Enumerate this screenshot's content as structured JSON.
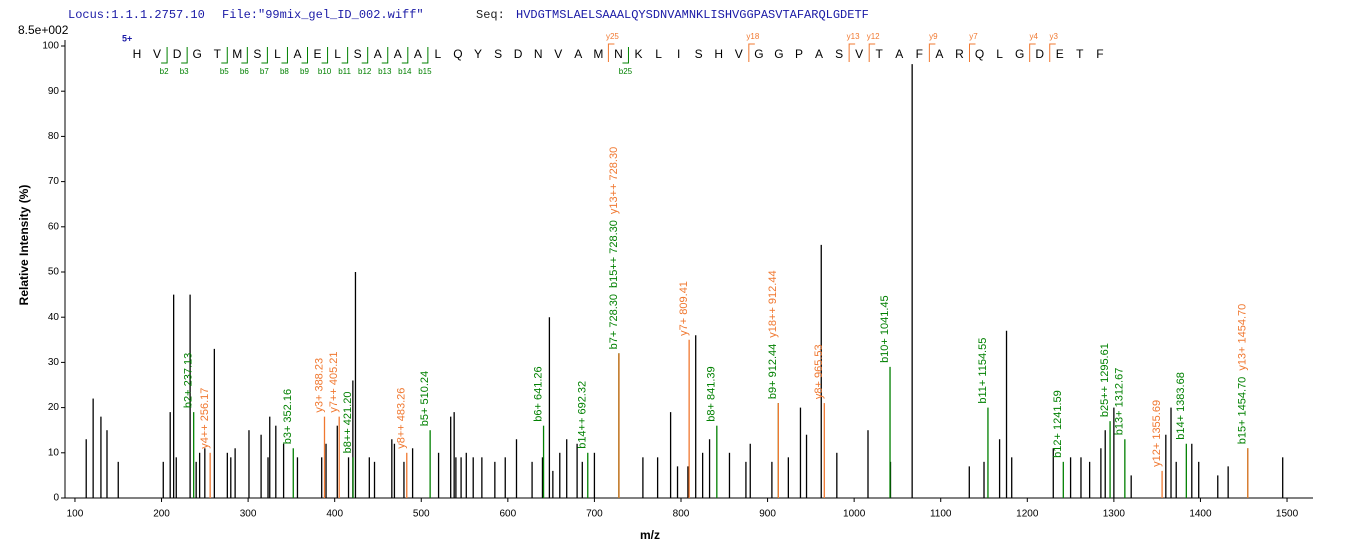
{
  "chart_data": {
    "type": "spectrum",
    "header": {
      "locus": "Locus:1.1.1.2757.10",
      "file": "File:\"99mix_gel_ID_002.wiff\"",
      "seq_label": "Seq:",
      "sequence": "HVDGTMSLAELSAAALQYSDNVAMNKLISHVGGPASVTAFARQLGDETF"
    },
    "scale_label": "8.5e+002",
    "charge": "5+",
    "residues": [
      "H",
      "V",
      "D",
      "G",
      "T",
      "M",
      "S",
      "L",
      "A",
      "E",
      "L",
      "S",
      "A",
      "A",
      "A",
      "L",
      "Q",
      "Y",
      "S",
      "D",
      "N",
      "V",
      "A",
      "M",
      "N",
      "K",
      "L",
      "I",
      "S",
      "H",
      "V",
      "G",
      "G",
      "P",
      "A",
      "S",
      "V",
      "T",
      "A",
      "F",
      "A",
      "R",
      "Q",
      "L",
      "G",
      "D",
      "E",
      "T",
      "F"
    ],
    "b_ions": [
      "b2",
      "b3",
      "b5",
      "b6",
      "b7",
      "b8",
      "b9",
      "b10",
      "b11",
      "b12",
      "b13",
      "b14",
      "b15",
      "b25"
    ],
    "y_ions": [
      "y25",
      "y18",
      "y13",
      "y12",
      "y9",
      "y7",
      "y4",
      "y3"
    ],
    "xlabel": "m/z",
    "ylabel": "Relative   Intensity (%)",
    "xlim": [
      88.5,
      1530
    ],
    "ylim": [
      0,
      100
    ],
    "xticks": [
      100,
      200,
      300,
      400,
      500,
      600,
      700,
      800,
      900,
      1000,
      1100,
      1200,
      1300,
      1400,
      1500
    ],
    "yticks": [
      0,
      10,
      20,
      30,
      40,
      50,
      60,
      70,
      80,
      90,
      100
    ],
    "series": [
      {
        "color": "#000000",
        "x": [
          113,
          121,
          130,
          137,
          150,
          202,
          210,
          214,
          217,
          233,
          240,
          244,
          250,
          261,
          276,
          280,
          285,
          301,
          315,
          323,
          325,
          332,
          341,
          357,
          385,
          390,
          403,
          416,
          421,
          424,
          440,
          446,
          466,
          469,
          480,
          490,
          520,
          534,
          538,
          540,
          546,
          552,
          560,
          570,
          585,
          597,
          610,
          628,
          640,
          648,
          652,
          660,
          668,
          680,
          686,
          700,
          756,
          773,
          788,
          796,
          808,
          817,
          825,
          833,
          856,
          875,
          880,
          905,
          924,
          938,
          945,
          962,
          980,
          1016,
          1042,
          1067,
          1133,
          1150,
          1168,
          1176,
          1182,
          1230,
          1250,
          1262,
          1272,
          1285,
          1290,
          1300,
          1320,
          1360,
          1366,
          1372,
          1390,
          1398,
          1420,
          1432,
          1495
        ],
        "values": [
          13,
          22,
          18,
          15,
          8,
          8,
          19,
          45,
          9,
          45,
          8,
          10,
          11,
          33,
          10,
          9,
          11,
          15,
          14,
          9,
          18,
          16,
          12,
          9,
          9,
          12,
          16,
          9,
          26,
          50,
          9,
          8,
          13,
          12,
          8,
          11,
          10,
          18,
          19,
          9,
          9,
          10,
          9,
          9,
          8,
          9,
          13,
          8,
          9,
          40,
          6,
          10,
          13,
          12,
          8,
          10,
          9,
          9,
          19,
          7,
          7,
          36,
          10,
          13,
          10,
          8,
          12,
          8,
          9,
          20,
          14,
          56,
          10,
          15,
          8,
          96,
          7,
          8,
          13,
          37,
          9,
          11,
          9,
          9,
          8,
          11,
          15,
          20,
          5,
          14,
          20,
          8,
          12,
          8,
          5,
          7,
          9
        ]
      },
      {
        "color": "#008000",
        "x": [
          237.13,
          352.16,
          421.2,
          510.24,
          641.26,
          692.32,
          728.3,
          728.3,
          841.39,
          912.44,
          1041.45,
          1154.55,
          1241.59,
          1295.61,
          1312.67,
          1383.68,
          1454.7
        ],
        "values": [
          19,
          11,
          9,
          15,
          16,
          10,
          32,
          32,
          16,
          21,
          29,
          20,
          8,
          17,
          13,
          12,
          11
        ],
        "peak_labels": [
          "b2+ 237.13",
          "b3+ 352.16",
          "b8++ 421.20",
          "b5+ 510.24",
          "b6+ 641.26",
          "b14++ 692.32",
          "b7+ 728.30",
          "b15++ 728.30",
          "b8+ 841.39",
          "b9+ 912.44",
          "b10+ 1041.45",
          "b11+ 1154.55",
          "b12+ 1241.59",
          "b25++ 1295.61",
          "b13+ 1312.67",
          "b14+ 1383.68",
          "b15+ 1454.70"
        ]
      },
      {
        "color": "#f07830",
        "x": [
          256.17,
          388.23,
          405.21,
          483.26,
          728.3,
          809.41,
          912.44,
          965.53,
          1355.69,
          1454.7
        ],
        "values": [
          10,
          18,
          18,
          10,
          32,
          35,
          21,
          21,
          6,
          11
        ],
        "peak_labels": [
          "y4++ 256.17",
          "y3+ 388.23",
          "y7++ 405.21",
          "y8++ 483.26",
          "y13++ 728.30",
          "y7+ 809.41",
          "y18++ 912.44",
          "y8+ 965.53",
          "y12+ 1355.69",
          "y13+ 1454.70"
        ]
      }
    ]
  }
}
